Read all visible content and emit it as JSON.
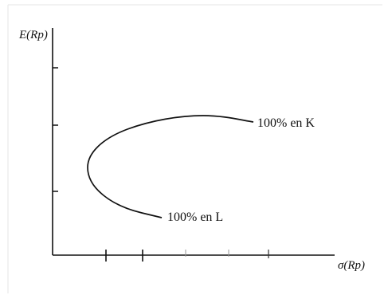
{
  "diagram": {
    "y_axis_label": "E(Rp)",
    "x_axis_label": "σ(Rp)",
    "annotations": {
      "top_end": "100% en K",
      "bottom_end": "100% en L"
    },
    "colors": {
      "axis": "#111111",
      "curve": "#111111",
      "background": "#ffffff"
    }
  }
}
